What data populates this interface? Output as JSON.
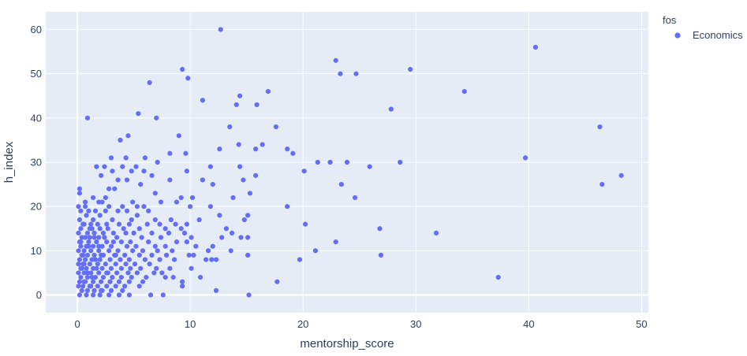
{
  "chart_data": {
    "type": "scatter",
    "x_label": "mentorship_score",
    "y_label": "h_index",
    "xlim": [
      -2.8,
      50.6
    ],
    "ylim": [
      -4,
      64
    ],
    "x_ticks": [
      0,
      10,
      20,
      30,
      40,
      50
    ],
    "y_ticks": [
      0,
      10,
      20,
      30,
      40,
      50,
      60
    ],
    "grid": true,
    "legend": {
      "title": "fos",
      "placement": "top-right"
    },
    "plot_background": "#e5ecf6",
    "grid_color": "#ffffff",
    "series": [
      {
        "name": "Economics",
        "color": "#636efa",
        "points": [
          [
            12.7,
            60
          ],
          [
            40.6,
            56
          ],
          [
            9.3,
            51
          ],
          [
            22.9,
            53
          ],
          [
            29.5,
            51
          ],
          [
            6.4,
            48
          ],
          [
            9.8,
            49
          ],
          [
            23.3,
            50
          ],
          [
            24.7,
            50
          ],
          [
            34.3,
            46
          ],
          [
            16.9,
            46
          ],
          [
            11.1,
            44
          ],
          [
            14.4,
            45
          ],
          [
            14.1,
            43
          ],
          [
            15.9,
            43
          ],
          [
            27.8,
            42
          ],
          [
            5.4,
            41
          ],
          [
            0.9,
            40
          ],
          [
            7.0,
            40
          ],
          [
            13.5,
            38
          ],
          [
            17.6,
            38
          ],
          [
            46.3,
            38
          ],
          [
            4.5,
            36
          ],
          [
            9.0,
            36
          ],
          [
            3.8,
            35
          ],
          [
            14.3,
            34
          ],
          [
            16.4,
            34
          ],
          [
            12.6,
            33
          ],
          [
            15.8,
            33
          ],
          [
            18.6,
            33
          ],
          [
            19.1,
            32
          ],
          [
            8.2,
            32
          ],
          [
            9.6,
            32
          ],
          [
            39.7,
            31
          ],
          [
            3.0,
            31
          ],
          [
            4.3,
            31
          ],
          [
            6.0,
            31
          ],
          [
            21.3,
            30
          ],
          [
            22.4,
            30
          ],
          [
            23.9,
            30
          ],
          [
            28.6,
            30
          ],
          [
            25.9,
            29
          ],
          [
            1.7,
            29
          ],
          [
            2.4,
            29
          ],
          [
            4.0,
            29
          ],
          [
            5.2,
            29
          ],
          [
            11.8,
            29
          ],
          [
            14.4,
            29
          ],
          [
            7.1,
            30
          ],
          [
            3.1,
            28
          ],
          [
            4.8,
            28
          ],
          [
            5.9,
            28
          ],
          [
            9.7,
            28
          ],
          [
            20.1,
            28
          ],
          [
            48.2,
            27
          ],
          [
            15.8,
            27
          ],
          [
            2.1,
            27
          ],
          [
            6.6,
            27
          ],
          [
            4.4,
            26
          ],
          [
            8.2,
            26
          ],
          [
            11.1,
            26
          ],
          [
            14.7,
            26
          ],
          [
            0.2,
            24
          ],
          [
            23.4,
            25
          ],
          [
            46.5,
            25
          ],
          [
            0.2,
            23
          ],
          [
            2.8,
            24
          ],
          [
            12.0,
            25
          ],
          [
            3.6,
            26
          ],
          [
            5.6,
            25
          ],
          [
            2.5,
            22
          ],
          [
            9.2,
            22
          ],
          [
            15.3,
            23
          ],
          [
            24.6,
            22
          ],
          [
            3.3,
            24
          ],
          [
            1.4,
            22
          ],
          [
            6.9,
            23
          ],
          [
            10.2,
            22
          ],
          [
            13.8,
            22
          ],
          [
            4.9,
            21
          ],
          [
            0.7,
            21
          ],
          [
            1.9,
            21
          ],
          [
            2.2,
            21
          ],
          [
            7.4,
            21
          ],
          [
            8.8,
            21
          ],
          [
            10.0,
            20
          ],
          [
            18.6,
            20
          ],
          [
            0.1,
            20
          ],
          [
            0.7,
            20
          ],
          [
            2.8,
            20
          ],
          [
            4.0,
            20
          ],
          [
            5.3,
            20
          ],
          [
            5.9,
            20
          ],
          [
            11.8,
            20
          ],
          [
            0.3,
            19
          ],
          [
            1.0,
            19
          ],
          [
            1.6,
            19
          ],
          [
            2.5,
            19
          ],
          [
            3.6,
            19
          ],
          [
            4.4,
            19
          ],
          [
            6.3,
            19
          ],
          [
            12.6,
            18
          ],
          [
            15.1,
            18
          ],
          [
            5.3,
            18
          ],
          [
            2.0,
            18
          ],
          [
            0.2,
            17
          ],
          [
            1.4,
            17
          ],
          [
            3.1,
            17
          ],
          [
            4.8,
            17
          ],
          [
            6.9,
            17
          ],
          [
            8.3,
            17
          ],
          [
            10.8,
            17
          ],
          [
            14.8,
            17
          ],
          [
            0.6,
            16
          ],
          [
            1.8,
            16
          ],
          [
            2.6,
            16
          ],
          [
            3.7,
            16
          ],
          [
            4.6,
            16
          ],
          [
            6.2,
            16
          ],
          [
            7.3,
            16
          ],
          [
            8.7,
            16
          ],
          [
            9.7,
            16
          ],
          [
            20.2,
            16
          ],
          [
            26.8,
            15
          ],
          [
            0.3,
            15
          ],
          [
            1.3,
            15
          ],
          [
            2.7,
            15
          ],
          [
            4.1,
            15
          ],
          [
            5.5,
            15
          ],
          [
            7.8,
            15
          ],
          [
            9.2,
            15
          ],
          [
            13.2,
            15
          ],
          [
            0.1,
            14
          ],
          [
            0.9,
            14
          ],
          [
            1.5,
            14
          ],
          [
            2.3,
            14
          ],
          [
            3.2,
            14
          ],
          [
            4.3,
            14
          ],
          [
            5.0,
            14
          ],
          [
            6.6,
            14
          ],
          [
            8.1,
            14
          ],
          [
            9.5,
            14
          ],
          [
            13.7,
            14
          ],
          [
            31.8,
            14
          ],
          [
            0.4,
            13
          ],
          [
            1.1,
            13
          ],
          [
            1.9,
            13
          ],
          [
            3.5,
            13
          ],
          [
            5.7,
            13
          ],
          [
            7.4,
            13
          ],
          [
            10.1,
            13
          ],
          [
            12.8,
            13
          ],
          [
            14.5,
            13
          ],
          [
            15.1,
            13
          ],
          [
            22.9,
            12
          ],
          [
            0.2,
            12
          ],
          [
            1.0,
            12
          ],
          [
            1.7,
            12
          ],
          [
            2.6,
            12
          ],
          [
            3.9,
            12
          ],
          [
            4.7,
            12
          ],
          [
            6.3,
            12
          ],
          [
            8.8,
            12
          ],
          [
            9.7,
            12
          ],
          [
            0.3,
            11
          ],
          [
            0.8,
            11
          ],
          [
            1.4,
            11
          ],
          [
            2.2,
            11
          ],
          [
            3.0,
            11
          ],
          [
            4.4,
            11
          ],
          [
            5.2,
            11
          ],
          [
            6.9,
            11
          ],
          [
            7.8,
            11
          ],
          [
            10.5,
            11
          ],
          [
            12.0,
            11
          ],
          [
            0.1,
            10
          ],
          [
            0.6,
            10
          ],
          [
            1.2,
            10
          ],
          [
            1.9,
            10
          ],
          [
            2.8,
            10
          ],
          [
            3.6,
            10
          ],
          [
            4.9,
            10
          ],
          [
            5.8,
            10
          ],
          [
            7.1,
            10
          ],
          [
            8.4,
            10
          ],
          [
            11.6,
            10
          ],
          [
            21.1,
            10
          ],
          [
            13.6,
            10
          ],
          [
            0.4,
            9
          ],
          [
            0.9,
            9
          ],
          [
            1.5,
            9
          ],
          [
            2.1,
            9
          ],
          [
            3.3,
            9
          ],
          [
            4.2,
            9
          ],
          [
            5.5,
            9
          ],
          [
            6.6,
            9
          ],
          [
            7.9,
            9
          ],
          [
            9.9,
            9
          ],
          [
            10.3,
            9
          ],
          [
            15.1,
            9
          ],
          [
            26.9,
            9
          ],
          [
            0.2,
            8
          ],
          [
            0.7,
            8
          ],
          [
            1.3,
            8
          ],
          [
            2.0,
            8
          ],
          [
            2.9,
            8
          ],
          [
            3.8,
            8
          ],
          [
            4.6,
            8
          ],
          [
            6.0,
            8
          ],
          [
            7.3,
            8
          ],
          [
            8.6,
            8
          ],
          [
            11.4,
            8
          ],
          [
            11.9,
            8
          ],
          [
            12.3,
            8
          ],
          [
            19.7,
            8
          ],
          [
            0.1,
            7
          ],
          [
            0.5,
            7
          ],
          [
            1.1,
            7
          ],
          [
            1.8,
            7
          ],
          [
            2.5,
            7
          ],
          [
            3.4,
            7
          ],
          [
            4.3,
            7
          ],
          [
            5.1,
            7
          ],
          [
            6.4,
            7
          ],
          [
            0.3,
            6
          ],
          [
            0.8,
            6
          ],
          [
            1.4,
            6
          ],
          [
            2.2,
            6
          ],
          [
            3.0,
            6
          ],
          [
            3.9,
            6
          ],
          [
            4.7,
            6
          ],
          [
            5.6,
            6
          ],
          [
            7.0,
            6
          ],
          [
            8.2,
            6
          ],
          [
            10.1,
            6
          ],
          [
            0.1,
            5
          ],
          [
            0.6,
            5
          ],
          [
            1.2,
            5
          ],
          [
            1.9,
            5
          ],
          [
            2.7,
            5
          ],
          [
            3.5,
            5
          ],
          [
            4.5,
            5
          ],
          [
            5.3,
            5
          ],
          [
            6.8,
            5
          ],
          [
            7.5,
            5
          ],
          [
            0.3,
            4
          ],
          [
            0.9,
            4
          ],
          [
            1.6,
            4
          ],
          [
            2.3,
            4
          ],
          [
            3.1,
            4
          ],
          [
            3.9,
            4
          ],
          [
            4.8,
            4
          ],
          [
            6.1,
            4
          ],
          [
            7.8,
            4
          ],
          [
            8.5,
            4
          ],
          [
            10.9,
            4
          ],
          [
            37.3,
            4
          ],
          [
            0.2,
            3
          ],
          [
            0.7,
            3
          ],
          [
            1.4,
            3
          ],
          [
            2.1,
            3
          ],
          [
            2.9,
            3
          ],
          [
            3.7,
            3
          ],
          [
            4.6,
            3
          ],
          [
            5.8,
            3
          ],
          [
            9.3,
            3
          ],
          [
            17.7,
            3
          ],
          [
            0.1,
            2
          ],
          [
            0.5,
            2
          ],
          [
            1.1,
            2
          ],
          [
            1.8,
            2
          ],
          [
            2.6,
            2
          ],
          [
            3.4,
            2
          ],
          [
            4.2,
            2
          ],
          [
            5.5,
            2
          ],
          [
            9.3,
            2
          ],
          [
            0.4,
            1
          ],
          [
            0.9,
            1
          ],
          [
            1.5,
            1
          ],
          [
            2.2,
            1
          ],
          [
            3.0,
            1
          ],
          [
            4.0,
            1
          ],
          [
            12.3,
            1
          ],
          [
            0.2,
            0
          ],
          [
            0.8,
            0
          ],
          [
            1.4,
            0
          ],
          [
            2.0,
            0
          ],
          [
            2.8,
            0
          ],
          [
            3.7,
            0
          ],
          [
            4.6,
            0
          ],
          [
            6.5,
            0
          ],
          [
            7.6,
            0
          ],
          [
            15.2,
            0
          ],
          [
            0.3,
            12
          ],
          [
            0.5,
            9
          ],
          [
            0.4,
            6
          ],
          [
            0.6,
            3
          ],
          [
            1.1,
            15
          ],
          [
            0.8,
            18
          ],
          [
            0.5,
            16
          ],
          [
            0.7,
            13
          ],
          [
            1.0,
            11
          ],
          [
            0.6,
            7
          ],
          [
            0.9,
            5
          ],
          [
            1.2,
            2
          ],
          [
            1.6,
            8
          ],
          [
            1.3,
            4
          ],
          [
            1.7,
            6
          ],
          [
            2.4,
            13
          ],
          [
            2.0,
            15
          ],
          [
            2.3,
            9
          ],
          [
            2.6,
            5
          ],
          [
            2.1,
            1
          ],
          [
            1.9,
            11
          ],
          [
            1.5,
            13
          ],
          [
            1.2,
            16
          ],
          [
            2.9,
            3
          ],
          [
            3.2,
            12
          ],
          [
            3.4,
            9
          ]
        ]
      }
    ]
  }
}
